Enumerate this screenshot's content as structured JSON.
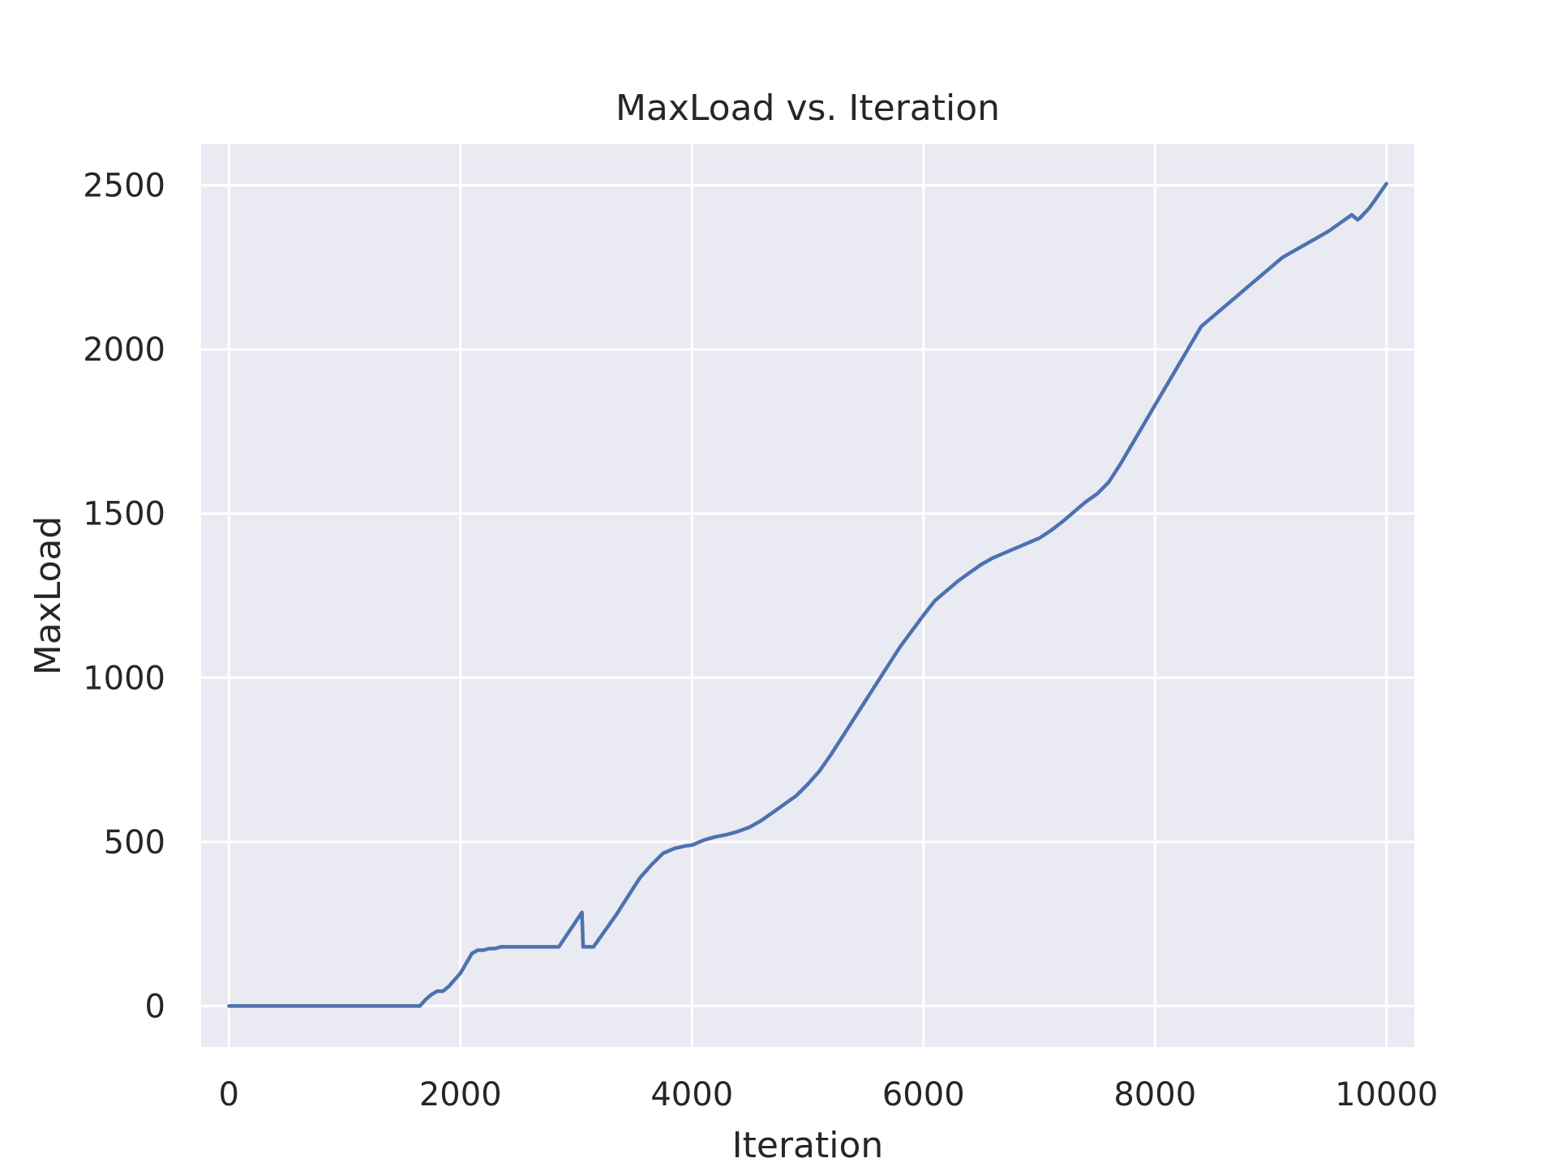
{
  "chart_data": {
    "type": "line",
    "title": "MaxLoad vs. Iteration",
    "xlabel": "Iteration",
    "ylabel": "MaxLoad",
    "xlim": [
      -240,
      10240
    ],
    "ylim": [
      -125,
      2625
    ],
    "xticks": [
      0,
      2000,
      4000,
      6000,
      8000,
      10000
    ],
    "yticks": [
      0,
      500,
      1000,
      1500,
      2000,
      2500
    ],
    "grid": true,
    "background": "#eaeaf2",
    "grid_color": "#ffffff",
    "line_color": "#4c72b0",
    "series": [
      {
        "x": [
          0,
          1650,
          1700,
          1750,
          1800,
          1850,
          1900,
          1950,
          2000,
          2050,
          2100,
          2150,
          2200,
          2250,
          2300,
          2350,
          2400,
          2850,
          3050,
          3060,
          3150,
          3250,
          3350,
          3450,
          3550,
          3650,
          3750,
          3850,
          3950,
          4000,
          4100,
          4200,
          4300,
          4400,
          4500,
          4600,
          4700,
          4800,
          4900,
          5000,
          5100,
          5200,
          5400,
          5600,
          5800,
          6000,
          6100,
          6200,
          6300,
          6400,
          6500,
          6600,
          6700,
          6800,
          6900,
          7000,
          7100,
          7200,
          7300,
          7400,
          7500,
          7600,
          7700,
          7800,
          7900,
          8000,
          8200,
          8400,
          8600,
          8700,
          8800,
          8900,
          9000,
          9100,
          9200,
          9300,
          9400,
          9500,
          9600,
          9700,
          9750,
          9770,
          9850,
          9900,
          9950,
          10000
        ],
        "y": [
          0,
          0,
          20,
          35,
          45,
          45,
          60,
          80,
          100,
          130,
          160,
          170,
          170,
          175,
          175,
          180,
          180,
          180,
          285,
          180,
          180,
          230,
          280,
          335,
          390,
          430,
          465,
          480,
          488,
          490,
          505,
          515,
          522,
          532,
          545,
          565,
          590,
          615,
          640,
          675,
          715,
          765,
          875,
          985,
          1095,
          1190,
          1235,
          1265,
          1295,
          1320,
          1345,
          1365,
          1380,
          1395,
          1410,
          1425,
          1448,
          1475,
          1505,
          1535,
          1560,
          1595,
          1650,
          1710,
          1770,
          1830,
          1950,
          2070,
          2130,
          2160,
          2190,
          2220,
          2250,
          2280,
          2300,
          2320,
          2340,
          2360,
          2385,
          2410,
          2395,
          2400,
          2430,
          2455,
          2480,
          2505
        ]
      }
    ]
  }
}
